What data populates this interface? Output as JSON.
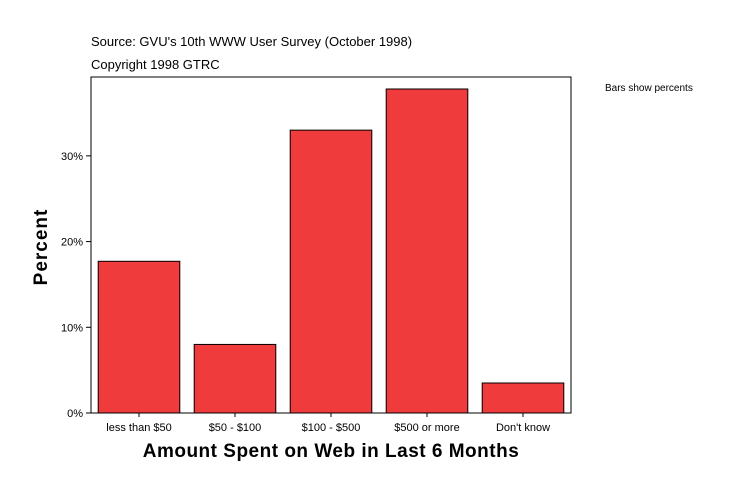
{
  "header": {
    "source": "Source: GVU's 10th WWW User Survey (October 1998)",
    "copyright": "Copyright 1998 GTRC"
  },
  "legend_note": "Bars show percents",
  "colors": {
    "bar_fill": "#ef3b3b",
    "bar_stroke": "#000000",
    "frame": "#000000",
    "background": "#ffffff"
  },
  "chart_data": {
    "type": "bar",
    "title": "",
    "xlabel": "Amount Spent on Web in Last 6 Months",
    "ylabel": "Percent",
    "categories": [
      "less than $50",
      "$50 - $100",
      "$100 - $500",
      "$500 or more",
      "Don't know"
    ],
    "values": [
      17.7,
      8.0,
      33.0,
      37.8,
      3.5
    ],
    "unit": "%",
    "ylim": [
      0,
      39.2
    ],
    "yticks": [
      0,
      10,
      20,
      30
    ],
    "ytick_labels": [
      "0%",
      "10%",
      "20%",
      "30%"
    ],
    "grid": false,
    "legend": "none"
  }
}
